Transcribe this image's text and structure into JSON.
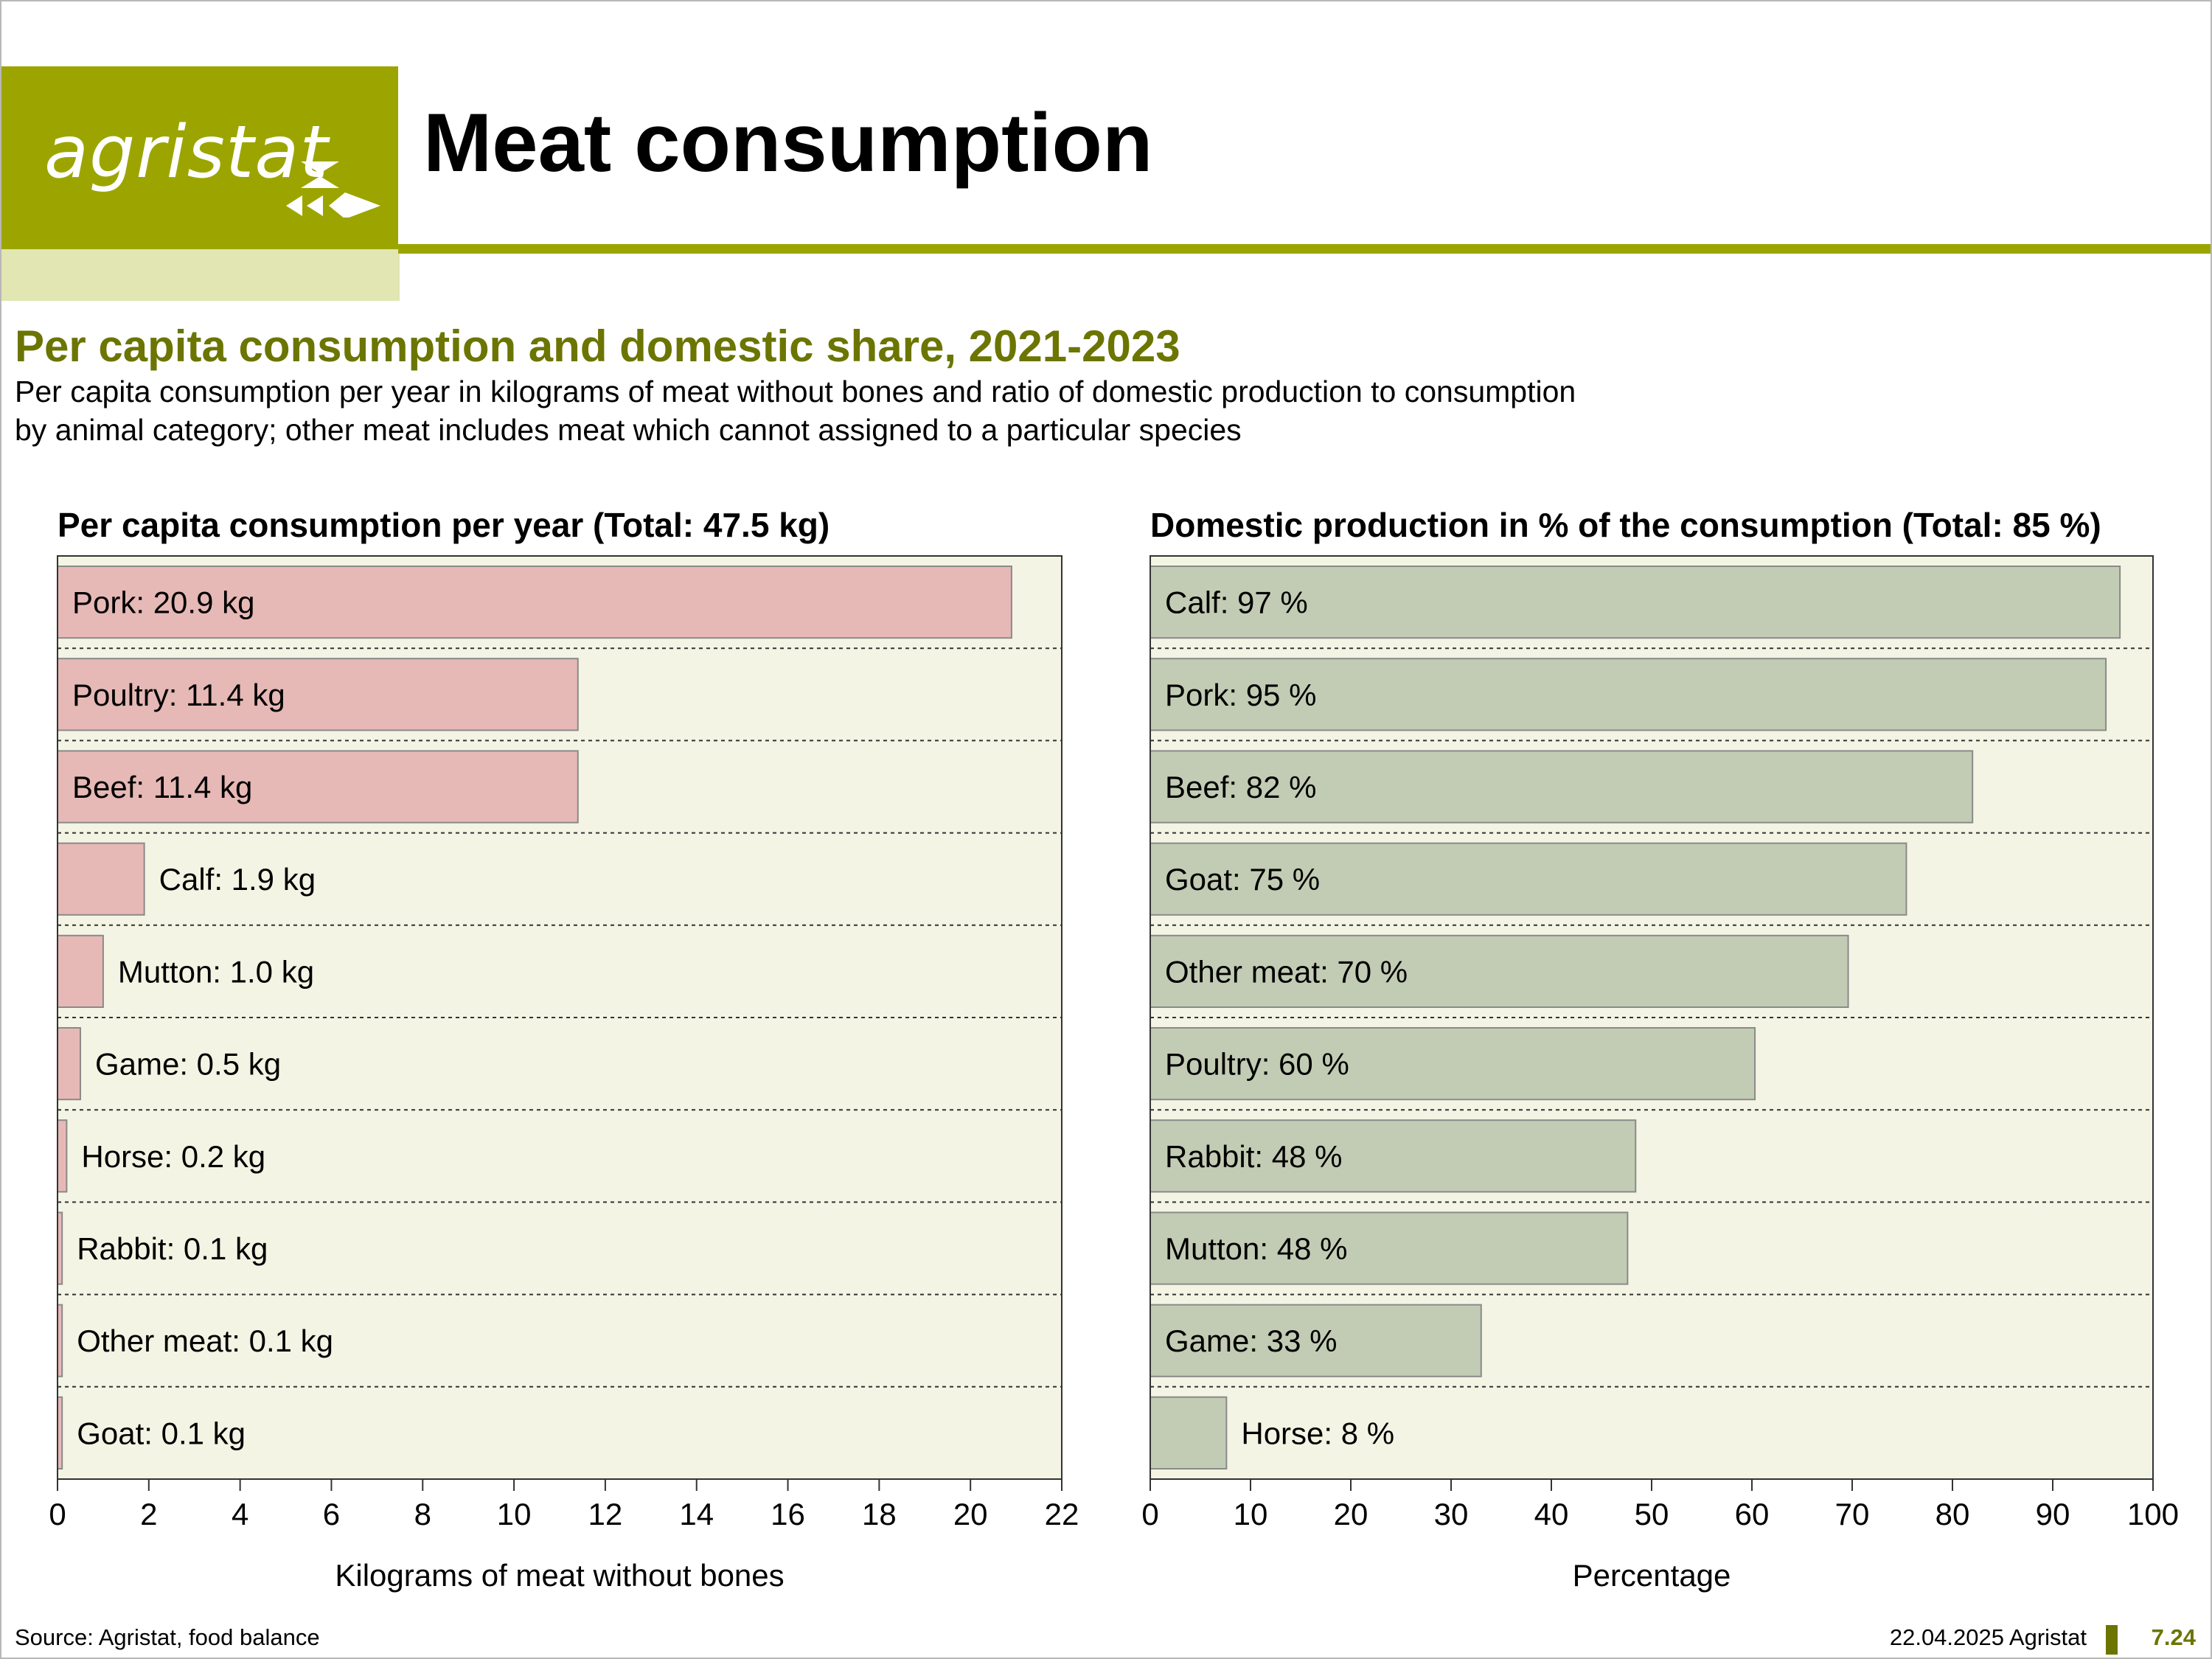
{
  "header": {
    "logo_text": "agristat",
    "title": "Meat consumption"
  },
  "section": {
    "title": "Per capita consumption and domestic share, 2021-2023",
    "description_line1": "Per capita consumption per year in kilograms of meat without bones and ratio of domestic production to consumption",
    "description_line2": "by animal category; other meat includes meat which cannot assigned to a particular species"
  },
  "colors": {
    "brand": "#9ca500",
    "brand_light": "#e1e6b3",
    "title_accent": "#6b7500",
    "plot_background": "#f3f4e3",
    "consumption_bar": "#e6b9b6",
    "domestic_bar": "#c2ccb4",
    "bar_stroke": "#8a8a8a"
  },
  "chart_data": [
    {
      "type": "bar",
      "orientation": "horizontal",
      "title": "Per capita consumption per year (Total: 47.5 kg)",
      "xlabel": "Kilograms of meat without bones",
      "xlim": [
        0,
        22
      ],
      "xticks": [
        0,
        2,
        4,
        6,
        8,
        10,
        12,
        14,
        16,
        18,
        20,
        22
      ],
      "grid": "dotted horizontal separators",
      "categories": [
        "Pork",
        "Poultry",
        "Beef",
        "Calf",
        "Mutton",
        "Game",
        "Horse",
        "Rabbit",
        "Other meat",
        "Goat"
      ],
      "values": [
        20.9,
        11.4,
        11.4,
        1.9,
        1.0,
        0.5,
        0.2,
        0.1,
        0.1,
        0.1
      ],
      "labels": [
        "Pork: 20.9 kg",
        "Poultry: 11.4 kg",
        "Beef: 11.4 kg",
        "Calf: 1.9 kg",
        "Mutton: 1.0 kg",
        "Game: 0.5 kg",
        "Horse: 0.2 kg",
        "Rabbit: 0.1 kg",
        "Other meat: 0.1 kg",
        "Goat: 0.1 kg"
      ]
    },
    {
      "type": "bar",
      "orientation": "horizontal",
      "title": "Domestic production in % of the consumption (Total: 85 %)",
      "xlabel": "Percentage",
      "xlim": [
        0,
        100
      ],
      "xticks": [
        0,
        10,
        20,
        30,
        40,
        50,
        60,
        70,
        80,
        90,
        100
      ],
      "grid": "dotted horizontal separators",
      "categories": [
        "Calf",
        "Pork",
        "Beef",
        "Goat",
        "Other meat",
        "Poultry",
        "Rabbit",
        "Mutton",
        "Game",
        "Horse"
      ],
      "values": [
        96.7,
        95.3,
        82,
        75.4,
        69.6,
        60.3,
        48.4,
        47.6,
        33,
        7.6
      ],
      "labels": [
        "Calf: 97 %",
        "Pork: 95 %",
        "Beef: 82 %",
        "Goat: 75 %",
        "Other meat: 70 %",
        "Poultry: 60 %",
        "Rabbit: 48 %",
        "Mutton: 48 %",
        "Game: 33 %",
        "Horse: 8 %"
      ]
    }
  ],
  "footer": {
    "source": "Source: Agristat, food balance",
    "date_publisher": "22.04.2025 Agristat",
    "page_number": "7.24"
  }
}
